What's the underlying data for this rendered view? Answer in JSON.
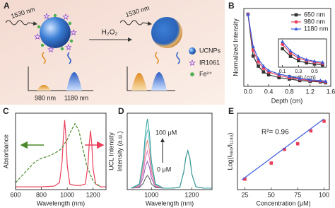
{
  "diagram": {
    "label": "A",
    "excitation": [
      "1530 nm",
      "1530 nm"
    ],
    "reagent": "H₂O₂",
    "legend": [
      "UCNPs",
      "IR1061",
      "Fe²⁺"
    ],
    "emission": [
      "980 nm",
      "1180 nm"
    ]
  },
  "chart_data": [
    {
      "type": "line",
      "label": "B",
      "xlabel": "Depth (cm)",
      "ylabel": "Normalized Intensity",
      "x": [
        0,
        0.1,
        0.2,
        0.3,
        0.4,
        0.6,
        0.8,
        1.0,
        1.2,
        1.4,
        1.5
      ],
      "series": [
        {
          "name": "650 nm",
          "color": "#333333",
          "marker": "square",
          "values": [
            1,
            0.42,
            0.28,
            0.2,
            0.16,
            0.12,
            0.1,
            0.08,
            0.07,
            0.06,
            0.05
          ]
        },
        {
          "name": "980 nm",
          "color": "#e8405a",
          "marker": "circle",
          "values": [
            1,
            0.5,
            0.34,
            0.25,
            0.2,
            0.15,
            0.12,
            0.1,
            0.08,
            0.07,
            0.06
          ]
        },
        {
          "name": "1180 nm",
          "color": "#3b5bdb",
          "marker": "triangle",
          "values": [
            1,
            0.55,
            0.38,
            0.28,
            0.22,
            0.17,
            0.14,
            0.11,
            0.09,
            0.08,
            0.07
          ]
        }
      ],
      "xlim": [
        -0.08,
        1.6
      ],
      "ylim": [
        0,
        1.08
      ],
      "xticks": [
        {
          "value": 0,
          "label": "0.0"
        },
        0.4,
        0.8,
        1.2,
        1.6
      ],
      "legend": "upper right"
    },
    {
      "type": "line",
      "xlabel": "Depth (cm)",
      "x": [
        0.1,
        0.2,
        0.3,
        0.4,
        0.5,
        0.6
      ],
      "series": [
        {
          "color": "#333333",
          "marker": "square",
          "values": [
            0.42,
            0.28,
            0.2,
            0.16,
            0.14,
            0.12
          ]
        },
        {
          "color": "#e8405a",
          "marker": "circle",
          "values": [
            0.5,
            0.34,
            0.25,
            0.2,
            0.17,
            0.15
          ]
        },
        {
          "color": "#3b5bdb",
          "marker": "triangle",
          "values": [
            0.55,
            0.38,
            0.28,
            0.22,
            0.19,
            0.17
          ]
        }
      ],
      "xlim": [
        0.05,
        0.65
      ],
      "ylim": [
        0.08,
        0.6
      ],
      "xticks": [
        0.1,
        0.3,
        0.5
      ]
    },
    {
      "type": "line",
      "label": "C",
      "xlabel": "Wavelength (nm)",
      "ylabel": "Absorbance",
      "ylabel_color": "#4a8a2a",
      "ylabel_right": "UCL Intensity",
      "ylabel_right_color": "#e8405a",
      "series": [
        {
          "color": "#e8405a",
          "x": [
            600,
            700,
            800,
            900,
            940,
            960,
            970,
            980,
            990,
            1000,
            1020,
            1060,
            1100,
            1140,
            1160,
            1170,
            1180,
            1190,
            1200,
            1220,
            1260,
            1300
          ],
          "values": [
            0.04,
            0.04,
            0.04,
            0.05,
            0.1,
            0.4,
            0.75,
            1.0,
            0.75,
            0.35,
            0.08,
            0.06,
            0.06,
            0.08,
            0.35,
            0.65,
            0.85,
            0.65,
            0.3,
            0.08,
            0.04,
            0.04
          ]
        },
        {
          "color": "#4a8a2a",
          "dash": true,
          "x": [
            600,
            650,
            700,
            750,
            800,
            850,
            900,
            950,
            1000,
            1030,
            1060,
            1090,
            1120,
            1150,
            1200,
            1250
          ],
          "values": [
            0.1,
            0.2,
            0.3,
            0.4,
            0.45,
            0.48,
            0.52,
            0.58,
            0.72,
            0.85,
            0.95,
            0.85,
            0.6,
            0.35,
            0.12,
            0.05
          ]
        }
      ],
      "xlim": [
        600,
        1300
      ],
      "ylim": [
        0,
        1.1
      ],
      "xticks": [
        600,
        800,
        1000,
        1200
      ]
    },
    {
      "type": "line",
      "label": "D",
      "xlabel": "Wavelength (nm)",
      "ylabel": "Intensity (a.u.)",
      "annotations": [
        "100 μM",
        "0 μM"
      ],
      "x": [
        900,
        940,
        960,
        970,
        980,
        990,
        1000,
        1020,
        1060,
        1100,
        1140,
        1160,
        1170,
        1180,
        1190,
        1200,
        1220,
        1260,
        1300
      ],
      "series": [
        {
          "color": "#555555",
          "values": [
            0.02,
            0.03,
            0.09,
            0.16,
            0.2,
            0.16,
            0.08,
            0.03,
            0.02,
            0.02,
            0.03,
            0.25,
            0.45,
            0.55,
            0.45,
            0.22,
            0.04,
            0.02,
            0.02
          ]
        },
        {
          "color": "#9b59b6",
          "values": [
            0.02,
            0.04,
            0.18,
            0.32,
            0.4,
            0.32,
            0.16,
            0.04,
            0.02,
            0.02,
            0.03,
            0.25,
            0.45,
            0.55,
            0.45,
            0.22,
            0.04,
            0.02,
            0.02
          ]
        },
        {
          "color": "#e377c2",
          "values": [
            0.02,
            0.05,
            0.25,
            0.44,
            0.55,
            0.44,
            0.22,
            0.05,
            0.02,
            0.02,
            0.03,
            0.25,
            0.45,
            0.55,
            0.45,
            0.22,
            0.04,
            0.02,
            0.02
          ]
        },
        {
          "color": "#f08080",
          "values": [
            0.02,
            0.06,
            0.32,
            0.56,
            0.7,
            0.56,
            0.28,
            0.06,
            0.02,
            0.02,
            0.03,
            0.25,
            0.45,
            0.55,
            0.45,
            0.22,
            0.04,
            0.02,
            0.02
          ]
        },
        {
          "color": "#7fc4c8",
          "values": [
            0.02,
            0.07,
            0.38,
            0.68,
            0.85,
            0.68,
            0.34,
            0.07,
            0.02,
            0.02,
            0.03,
            0.25,
            0.45,
            0.55,
            0.45,
            0.22,
            0.04,
            0.02,
            0.02
          ]
        },
        {
          "color": "#2aa198",
          "values": [
            0.02,
            0.08,
            0.45,
            0.8,
            1.0,
            0.8,
            0.4,
            0.08,
            0.02,
            0.02,
            0.03,
            0.25,
            0.45,
            0.55,
            0.45,
            0.22,
            0.04,
            0.02,
            0.02
          ]
        }
      ],
      "xlim": [
        880,
        1300
      ],
      "ylim": [
        0,
        1.08
      ],
      "xticks": [
        1000,
        1200
      ]
    },
    {
      "type": "scatter",
      "label": "E",
      "xlabel": "Concentration (μM)",
      "ylabel": "Log(I₉₈₀/I₁₁₈₀)",
      "annotations": [
        "R²= 0.96"
      ],
      "series": [
        {
          "color": "#e8405a",
          "marker": "square",
          "x": [
            25,
            50,
            62.5,
            75,
            87.5,
            100
          ],
          "values": [
            0.18,
            0.38,
            0.55,
            0.62,
            0.78,
            0.9
          ]
        },
        {
          "color": "#3b5bdb",
          "line": true,
          "x": [
            22,
            100
          ],
          "values": [
            0.17,
            0.93
          ]
        }
      ],
      "xlim": [
        18,
        105
      ],
      "ylim": [
        0.05,
        1.0
      ],
      "xticks": [
        25,
        50,
        75,
        100
      ]
    }
  ]
}
